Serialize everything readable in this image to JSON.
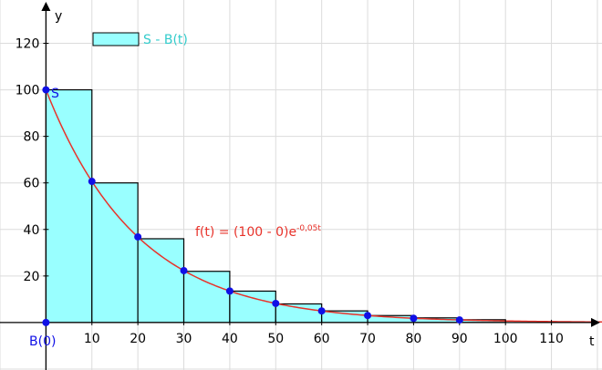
{
  "chart_data": {
    "type": "bar",
    "x_axis_label": "t",
    "y_axis_label": "y",
    "xlim": [
      -10,
      121
    ],
    "ylim": [
      -20.4,
      138.6
    ],
    "x_ticks": [
      10,
      20,
      30,
      40,
      50,
      60,
      70,
      80,
      90,
      100,
      110
    ],
    "y_ticks": [
      20,
      40,
      60,
      80,
      100,
      120
    ],
    "grid": true,
    "bars": [
      {
        "x0": 0,
        "x1": 10,
        "height": 100
      },
      {
        "x0": 10,
        "x1": 20,
        "height": 60
      },
      {
        "x0": 20,
        "x1": 30,
        "height": 36
      },
      {
        "x0": 30,
        "x1": 40,
        "height": 22
      },
      {
        "x0": 40,
        "x1": 50,
        "height": 13.5
      },
      {
        "x0": 50,
        "x1": 60,
        "height": 8
      },
      {
        "x0": 60,
        "x1": 70,
        "height": 5
      },
      {
        "x0": 70,
        "x1": 80,
        "height": 3
      },
      {
        "x0": 80,
        "x1": 90,
        "height": 2
      },
      {
        "x0": 90,
        "x1": 100,
        "height": 1.2
      }
    ],
    "points": [
      {
        "t": 0,
        "y": 100
      },
      {
        "t": 10,
        "y": 60.65
      },
      {
        "t": 20,
        "y": 36.79
      },
      {
        "t": 30,
        "y": 22.31
      },
      {
        "t": 40,
        "y": 13.53
      },
      {
        "t": 50,
        "y": 8.21
      },
      {
        "t": 60,
        "y": 4.98
      },
      {
        "t": 70,
        "y": 3.02
      },
      {
        "t": 80,
        "y": 1.83
      },
      {
        "t": 90,
        "y": 1.11
      },
      {
        "t": 0,
        "y": 0
      }
    ],
    "curve": {
      "a": 100,
      "k": -0.05,
      "t_from": 0,
      "t_to": 121,
      "color": "#e8322a"
    },
    "bar_fill": "#99ffff",
    "point_color": "#1010e6",
    "legend": {
      "label": "S - B(t)",
      "position": "top-left",
      "color": "#33cccc"
    },
    "point_labels": {
      "S": "S",
      "B0": "B(0)"
    },
    "formula": {
      "text": "f(t) = (100 - 0)e",
      "exponent": "-0,05t",
      "color": "#e8322a"
    }
  }
}
